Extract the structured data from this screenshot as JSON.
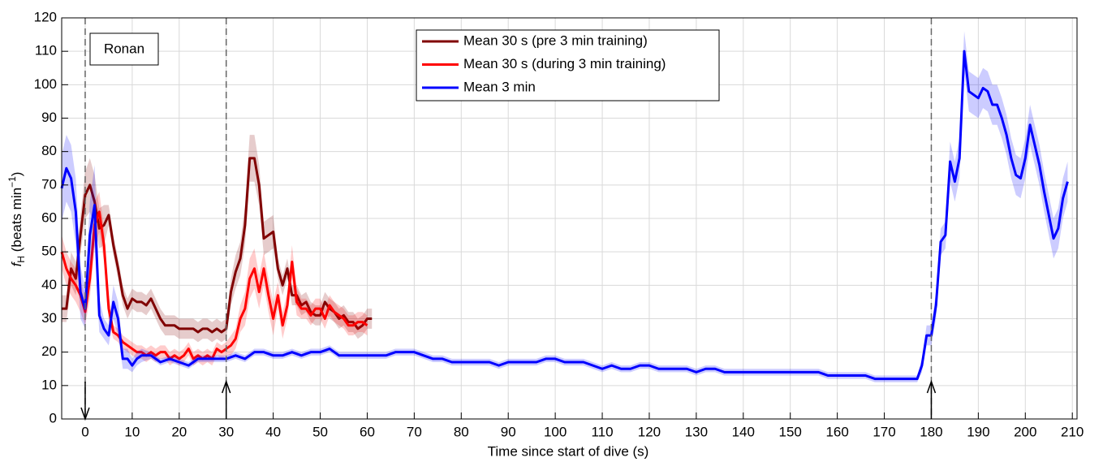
{
  "chart_data": {
    "type": "line",
    "xlabel": "Time since start of dive (s)",
    "ylabel_parts": [
      "f",
      "H",
      " (beats min",
      "−1",
      ")"
    ],
    "annotation": "Ronan",
    "xlim": [
      -5,
      211
    ],
    "ylim": [
      0,
      120
    ],
    "xticks": [
      0,
      10,
      20,
      30,
      40,
      50,
      60,
      70,
      80,
      90,
      100,
      110,
      120,
      130,
      140,
      150,
      160,
      170,
      180,
      190,
      200,
      210
    ],
    "yticks": [
      0,
      10,
      20,
      30,
      40,
      50,
      60,
      70,
      80,
      90,
      100,
      110,
      120
    ],
    "grid": true,
    "legend": "top-center",
    "events": [
      {
        "x": 0,
        "arrow": "down"
      },
      {
        "x": 30,
        "arrow": "up"
      },
      {
        "x": 180,
        "arrow": "up"
      }
    ],
    "series": [
      {
        "name": "Mean 30 s (pre 3 min training)",
        "color": "#800000",
        "x": [
          -5,
          -4,
          -3,
          -2,
          -1,
          0,
          1,
          2,
          3,
          4,
          5,
          6,
          7,
          8,
          9,
          10,
          11,
          12,
          13,
          14,
          15,
          16,
          17,
          18,
          19,
          20,
          21,
          22,
          23,
          24,
          25,
          26,
          27,
          28,
          29,
          30,
          31,
          32,
          33,
          34,
          35,
          36,
          37,
          38,
          39,
          40,
          41,
          42,
          43,
          44,
          45,
          46,
          47,
          48,
          49,
          50,
          51,
          52,
          53,
          54,
          55,
          56,
          57,
          58,
          59,
          60,
          61
        ],
        "values": [
          33,
          33,
          45,
          42,
          55,
          67,
          70,
          65,
          57,
          58,
          61,
          52,
          45,
          37,
          33,
          36,
          35,
          35,
          34,
          36,
          33,
          30,
          28,
          28,
          28,
          27,
          27,
          27,
          27,
          26,
          27,
          27,
          26,
          27,
          26,
          27,
          38,
          44,
          48,
          58,
          78,
          78,
          70,
          54,
          55,
          56,
          45,
          40,
          45,
          37,
          37,
          34,
          35,
          32,
          31,
          31,
          35,
          33,
          32,
          30,
          31,
          29,
          29,
          27,
          28,
          30,
          30
        ],
        "error": [
          4,
          4,
          5,
          5,
          6,
          7,
          8,
          8,
          6,
          6,
          3,
          3,
          3,
          3,
          3,
          3,
          3,
          3,
          3,
          3,
          3,
          3,
          3,
          3,
          3,
          3,
          3,
          3,
          3,
          3,
          3,
          3,
          3,
          3,
          3,
          3,
          4,
          5,
          5,
          6,
          7,
          7,
          6,
          5,
          5,
          5,
          3,
          3,
          3,
          3,
          3,
          3,
          3,
          3,
          3,
          3,
          3,
          3,
          3,
          3,
          3,
          3,
          3,
          3,
          3,
          3,
          3
        ]
      },
      {
        "name": "Mean 30 s (during 3 min training)",
        "color": "#ff0000",
        "x": [
          -5,
          -4,
          -3,
          -2,
          -1,
          0,
          1,
          2,
          3,
          4,
          5,
          6,
          7,
          8,
          9,
          10,
          11,
          12,
          13,
          14,
          15,
          16,
          17,
          18,
          19,
          20,
          21,
          22,
          23,
          24,
          25,
          26,
          27,
          28,
          29,
          30,
          31,
          32,
          33,
          34,
          35,
          36,
          37,
          38,
          39,
          40,
          41,
          42,
          43,
          44,
          45,
          46,
          47,
          48,
          49,
          50,
          51,
          52,
          53,
          54,
          55,
          56,
          57,
          58,
          59,
          60
        ],
        "values": [
          50,
          45,
          42,
          40,
          37,
          32,
          42,
          58,
          62,
          52,
          33,
          26,
          25,
          23,
          22,
          21,
          20,
          20,
          19,
          20,
          19,
          20,
          20,
          18,
          19,
          18,
          19,
          21,
          18,
          19,
          18,
          19,
          18,
          21,
          20,
          21,
          22,
          24,
          30,
          33,
          42,
          45,
          38,
          45,
          37,
          30,
          37,
          28,
          34,
          47,
          35,
          33,
          33,
          31,
          33,
          33,
          30,
          34,
          32,
          31,
          30,
          28,
          28,
          29,
          29,
          28
        ],
        "error": [
          5,
          5,
          5,
          5,
          5,
          4,
          6,
          7,
          6,
          5,
          4,
          2,
          2,
          2,
          2,
          2,
          2,
          2,
          2,
          2,
          2,
          2,
          2,
          2,
          2,
          2,
          2,
          2,
          2,
          2,
          2,
          2,
          2,
          2,
          2,
          2,
          3,
          3,
          4,
          5,
          6,
          6,
          5,
          5,
          5,
          5,
          4,
          4,
          4,
          5,
          4,
          3,
          3,
          3,
          3,
          3,
          3,
          3,
          3,
          3,
          3,
          3,
          3,
          3,
          3,
          3
        ]
      },
      {
        "name": "Mean 3 min",
        "color": "#0000ff",
        "x": [
          -5,
          -4,
          -3,
          -2,
          -1,
          0,
          1,
          2,
          3,
          4,
          5,
          6,
          7,
          8,
          9,
          10,
          11,
          12,
          14,
          16,
          18,
          20,
          22,
          24,
          26,
          28,
          30,
          32,
          34,
          36,
          38,
          40,
          42,
          44,
          46,
          48,
          50,
          52,
          54,
          56,
          58,
          60,
          62,
          64,
          66,
          68,
          70,
          72,
          74,
          76,
          78,
          80,
          82,
          84,
          86,
          88,
          90,
          92,
          94,
          96,
          98,
          100,
          102,
          104,
          106,
          108,
          110,
          112,
          114,
          116,
          118,
          120,
          122,
          124,
          126,
          128,
          130,
          132,
          134,
          136,
          138,
          140,
          142,
          144,
          146,
          148,
          150,
          152,
          154,
          156,
          158,
          160,
          162,
          164,
          166,
          168,
          170,
          172,
          174,
          176,
          177,
          178,
          179,
          180,
          181,
          182,
          183,
          184,
          185,
          186,
          187,
          188,
          189,
          190,
          191,
          192,
          193,
          194,
          195,
          196,
          197,
          198,
          199,
          200,
          201,
          202,
          203,
          204,
          205,
          206,
          207,
          208,
          209
        ],
        "values": [
          69,
          75,
          72,
          62,
          38,
          33,
          55,
          64,
          31,
          27,
          25,
          35,
          30,
          18,
          18,
          16,
          18,
          19,
          19,
          17,
          18,
          17,
          16,
          18,
          18,
          18,
          18,
          19,
          18,
          20,
          20,
          19,
          19,
          20,
          19,
          20,
          20,
          21,
          19,
          19,
          19,
          19,
          19,
          19,
          20,
          20,
          20,
          19,
          18,
          18,
          17,
          17,
          17,
          17,
          17,
          16,
          17,
          17,
          17,
          17,
          18,
          18,
          17,
          17,
          17,
          16,
          15,
          16,
          15,
          15,
          16,
          16,
          15,
          15,
          15,
          15,
          14,
          15,
          15,
          14,
          14,
          14,
          14,
          14,
          14,
          14,
          14,
          14,
          14,
          14,
          13,
          13,
          13,
          13,
          13,
          12,
          12,
          12,
          12,
          12,
          12,
          16,
          25,
          25,
          34,
          53,
          55,
          77,
          71,
          78,
          110,
          98,
          97,
          96,
          99,
          98,
          94,
          94,
          90,
          85,
          78,
          73,
          72,
          78,
          88,
          82,
          76,
          68,
          61,
          54,
          57,
          66,
          71
        ],
        "error": [
          10,
          10,
          10,
          10,
          8,
          6,
          10,
          12,
          5,
          3,
          3,
          5,
          5,
          3,
          3,
          2,
          2,
          2,
          1,
          1,
          1,
          1,
          1,
          1,
          1,
          1,
          1,
          1,
          1,
          1,
          1,
          1,
          1,
          1,
          1,
          1,
          1,
          1,
          1,
          1,
          1,
          1,
          1,
          1,
          1,
          1,
          1,
          1,
          1,
          1,
          1,
          1,
          1,
          1,
          1,
          1,
          1,
          1,
          1,
          1,
          1,
          1,
          1,
          1,
          1,
          1,
          1,
          1,
          1,
          1,
          1,
          1,
          1,
          1,
          1,
          1,
          1,
          1,
          1,
          1,
          1,
          1,
          1,
          1,
          1,
          1,
          1,
          1,
          1,
          1,
          1,
          1,
          1,
          1,
          1,
          1,
          1,
          1,
          1,
          1,
          1,
          2,
          3,
          3,
          4,
          4,
          4,
          6,
          6,
          6,
          6,
          6,
          6,
          6,
          6,
          6,
          6,
          6,
          6,
          6,
          6,
          6,
          6,
          6,
          6,
          6,
          6,
          6,
          6,
          6,
          6,
          6,
          6
        ]
      }
    ]
  }
}
